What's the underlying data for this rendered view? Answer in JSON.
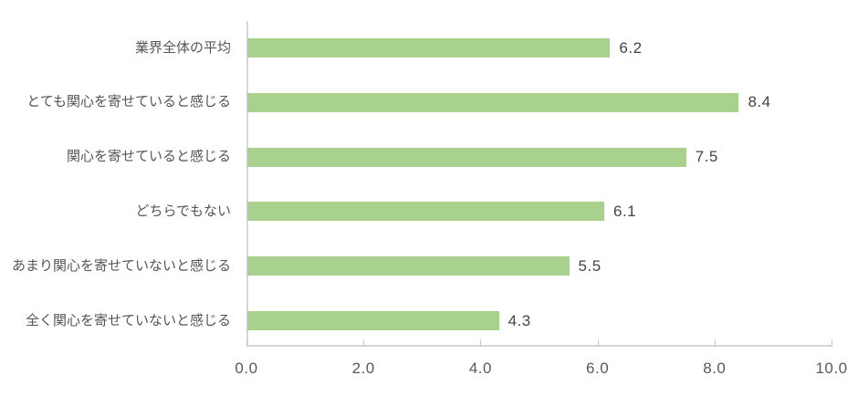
{
  "chart_data": {
    "type": "bar",
    "orientation": "horizontal",
    "title": "",
    "xlabel": "",
    "ylabel": "",
    "categories": [
      "業界全体の平均",
      "とても関心を寄せていると感じる",
      "関心を寄せていると感じる",
      "どちらでもない",
      "あまり関心を寄せていないと感じる",
      "全く関心を寄せていないと感じる"
    ],
    "values": [
      6.2,
      8.4,
      7.5,
      6.1,
      5.5,
      4.3
    ],
    "value_labels": [
      "6.2",
      "8.4",
      "7.5",
      "6.1",
      "5.5",
      "4.3"
    ],
    "xlim": [
      0,
      10
    ],
    "x_tick_values": [
      0,
      2,
      4,
      6,
      8,
      10
    ],
    "x_tick_labels": [
      "0.0",
      "2.0",
      "4.0",
      "6.0",
      "8.0",
      "10.0"
    ],
    "grid": false,
    "legend": false,
    "data_labels_shown": true,
    "colors": {
      "bar": "#A9D18E",
      "axis_line": "#D6D6D6",
      "tick_mark": "#C9C9C9",
      "category_text": "#555555",
      "value_text": "#444444",
      "axis_text": "#595959",
      "background": "#FFFFFF"
    }
  }
}
